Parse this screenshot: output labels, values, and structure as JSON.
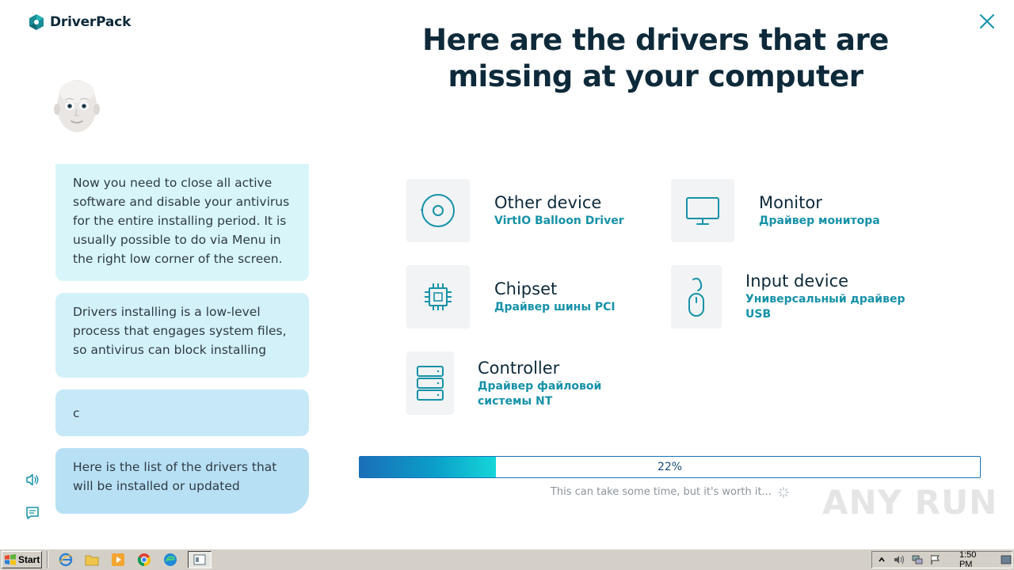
{
  "app": {
    "logo_text": "DriverPack"
  },
  "heading": "Here are the drivers that are missing at your computer",
  "chat": [
    {
      "text": "Now you need to close all active software and disable your antivirus for the entire installing period. It is usually possible to do via Menu in the right low corner of the screen."
    },
    {
      "text": "Drivers installing is a low-level process that engages system files, so antivirus can block installing"
    },
    {
      "text": "c"
    },
    {
      "text": "Here is the list of the drivers that will be installed or updated"
    }
  ],
  "drivers": [
    {
      "name": "Other device",
      "desc": "VirtIO Balloon Driver",
      "icon": "disc-icon"
    },
    {
      "name": "Monitor",
      "desc": "Драйвер монитора",
      "icon": "monitor-icon"
    },
    {
      "name": "Chipset",
      "desc": "Драйвер шины PCI",
      "icon": "chip-icon"
    },
    {
      "name": "Input device",
      "desc_line1": "Универсальный драйвер",
      "desc_line2": "USB",
      "icon": "mouse-icon"
    },
    {
      "name": "Controller",
      "desc_line1": "Драйвер файловой",
      "desc_line2": "системы NT",
      "icon": "server-icon"
    }
  ],
  "progress": {
    "value": 0.22,
    "label": "22%"
  },
  "hint": "This can take some time, but it's worth it...",
  "watermark": "ANY RUN",
  "taskbar": {
    "start_label": "Start",
    "clock": "1:50 PM"
  },
  "colors": {
    "accent": "#1692a8",
    "heading": "#0e2a3a",
    "progress_start": "#1a6fb8",
    "progress_end": "#16d6d8"
  }
}
